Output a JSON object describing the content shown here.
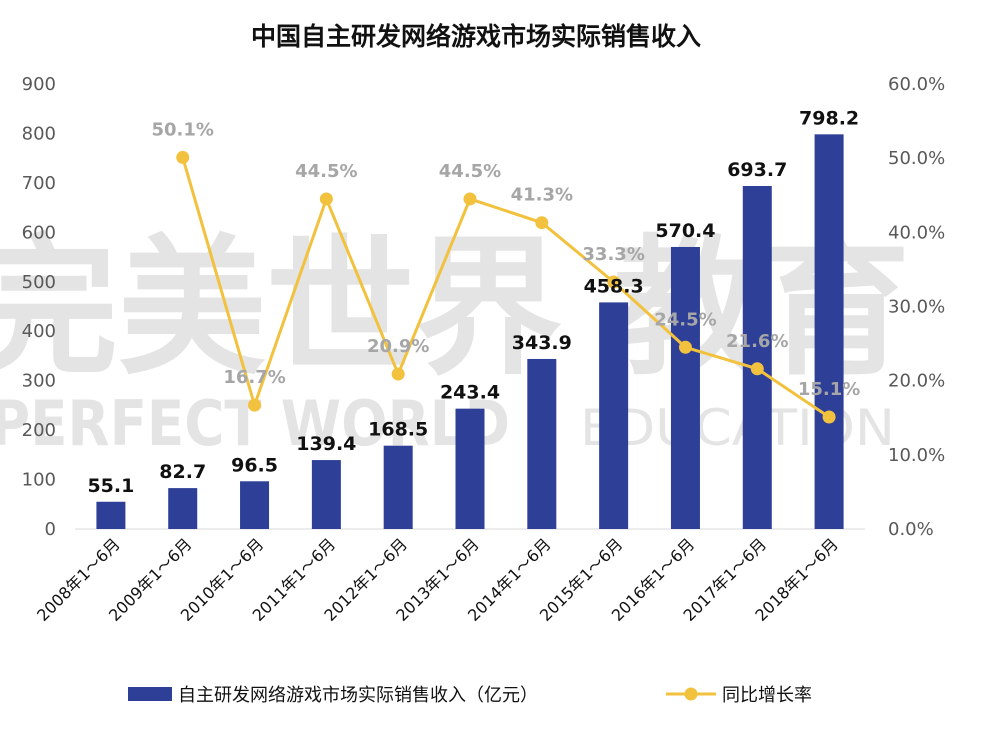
{
  "chart_data": {
    "type": "bar",
    "title": "中国自主研发网络游戏市场实际销售收入",
    "categories": [
      "2008年1～6月",
      "2009年1～6月",
      "2010年1～6月",
      "2011年1～6月",
      "2012年1～6月",
      "2013年1～6月",
      "2014年1～6月",
      "2015年1～6月",
      "2016年1～6月",
      "2017年1～6月",
      "2018年1～6月"
    ],
    "series": [
      {
        "name": "自主研发网络游戏市场实际销售收入（亿元）",
        "type": "bar",
        "axis": "left",
        "color": "#2e3f97",
        "values": [
          55.1,
          82.7,
          96.5,
          139.4,
          168.5,
          243.4,
          343.9,
          458.3,
          570.4,
          693.7,
          798.2
        ],
        "labels": [
          "55.1",
          "82.7",
          "96.5",
          "139.4",
          "168.5",
          "243.4",
          "343.9",
          "458.3",
          "570.4",
          "693.7",
          "798.2"
        ]
      },
      {
        "name": "同比增长率",
        "type": "line",
        "axis": "right",
        "color": "#f2c23e",
        "values": [
          null,
          50.1,
          16.7,
          44.5,
          20.9,
          44.5,
          41.3,
          33.3,
          24.5,
          21.6,
          15.1
        ],
        "labels": [
          "",
          "50.1%",
          "16.7%",
          "44.5%",
          "20.9%",
          "44.5%",
          "41.3%",
          "33.3%",
          "24.5%",
          "21.6%",
          "15.1%"
        ]
      }
    ],
    "y_left": {
      "min": 0,
      "max": 900,
      "ticks": [
        "0",
        "100",
        "200",
        "300",
        "400",
        "500",
        "600",
        "700",
        "800",
        "900"
      ]
    },
    "y_right": {
      "min": 0,
      "max": 60,
      "ticks": [
        "0.0%",
        "10.0%",
        "20.0%",
        "30.0%",
        "40.0%",
        "50.0%",
        "60.0%"
      ]
    },
    "legend_position": "bottom",
    "grid": false
  },
  "watermark": {
    "cn": "完美世界 教育",
    "en_left": "PERFECT WORLD",
    "en_right": "EDUCATION"
  }
}
